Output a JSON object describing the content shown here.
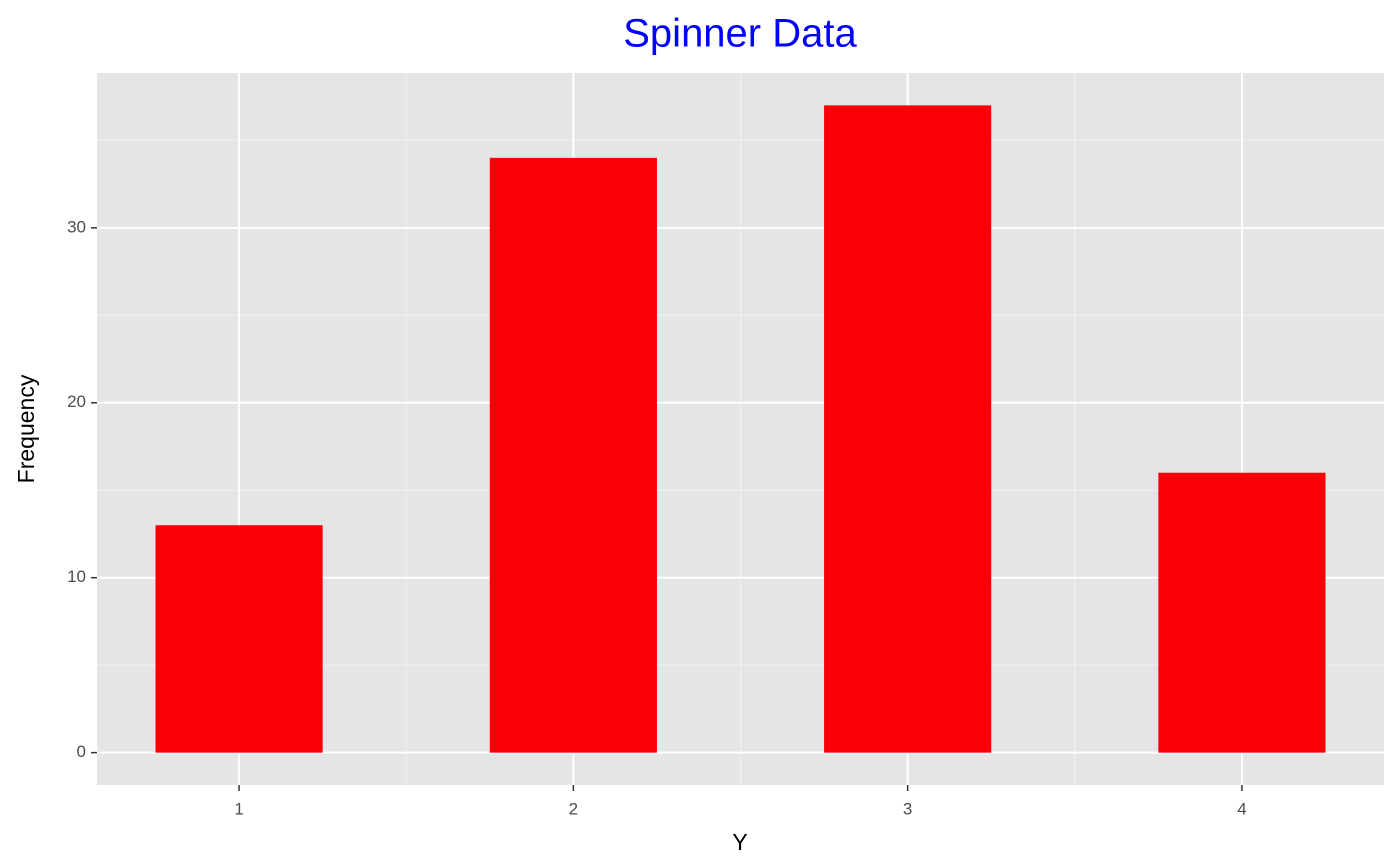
{
  "chart_data": {
    "type": "bar",
    "title": "Spinner Data",
    "x_label": "Y",
    "y_label": "Frequency",
    "x": [
      1,
      2,
      3,
      4
    ],
    "values": [
      13,
      34,
      37,
      16
    ],
    "color": "#fa0006",
    "xlim": [
      0.575,
      4.425
    ],
    "xticks": [
      1,
      2,
      3,
      4
    ],
    "ylim": [
      -1.85,
      38.85
    ],
    "yticks": [
      0,
      10,
      20,
      30
    ],
    "grid": true
  }
}
